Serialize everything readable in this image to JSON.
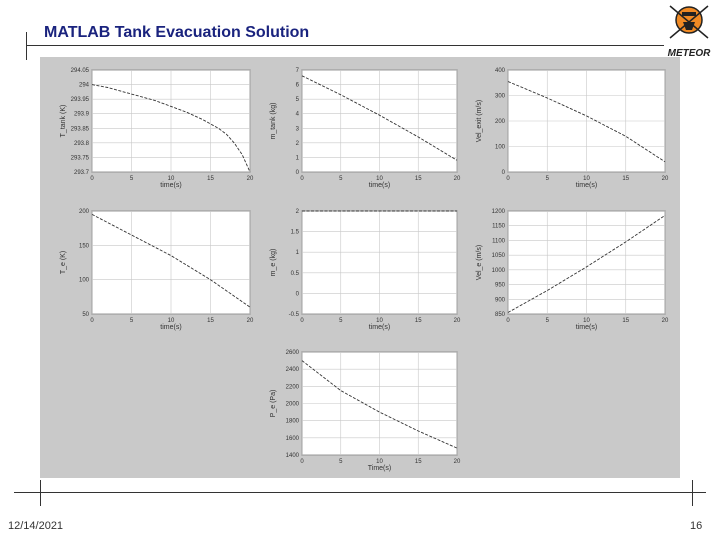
{
  "header": {
    "title": "MATLAB Tank Evacuation Solution",
    "logo_text": "METEOR"
  },
  "footer": {
    "date": "12/14/2021",
    "page": "16"
  },
  "colors": {
    "panel": "#c9c9c9",
    "title": "#1a237e",
    "grid": "#c8c8c8",
    "line": "#333333"
  },
  "chart_data": [
    {
      "type": "line",
      "xlabel": "time(s)",
      "ylabel": "T_tank (K)",
      "xticks": [
        0,
        5,
        10,
        15,
        20
      ],
      "xtick_labels": [
        "0",
        "5",
        "10",
        "15",
        "20"
      ],
      "xlim": [
        0,
        20
      ],
      "yticks": [
        293.7,
        293.75,
        293.8,
        293.85,
        293.9,
        293.95,
        294,
        294.05
      ],
      "ytick_labels": [
        "293.7",
        "293.75",
        "293.8",
        "293.85",
        "293.9",
        "293.95",
        "294",
        "294.05"
      ],
      "ylim": [
        293.7,
        294.05
      ],
      "x": [
        0,
        2,
        4,
        6,
        8,
        10,
        12,
        14,
        16,
        17,
        18,
        19,
        20
      ],
      "y": [
        294.0,
        293.99,
        293.975,
        293.96,
        293.945,
        293.925,
        293.905,
        293.88,
        293.85,
        293.83,
        293.8,
        293.76,
        293.7
      ]
    },
    {
      "type": "line",
      "xlabel": "time(s)",
      "ylabel": "m_tank (kg)",
      "xticks": [
        0,
        5,
        10,
        15,
        20
      ],
      "xtick_labels": [
        "0",
        "5",
        "10",
        "15",
        "20"
      ],
      "xlim": [
        0,
        20
      ],
      "yticks": [
        0,
        1,
        2,
        3,
        4,
        5,
        6,
        7
      ],
      "ytick_labels": [
        "0",
        "1",
        "2",
        "3",
        "4",
        "5",
        "6",
        "7"
      ],
      "ylim": [
        0,
        7
      ],
      "x": [
        0,
        5,
        10,
        15,
        20
      ],
      "y": [
        6.6,
        5.3,
        3.9,
        2.4,
        0.8
      ]
    },
    {
      "type": "line",
      "xlabel": "time(s)",
      "ylabel": "Vel_exit (m/s)",
      "xticks": [
        0,
        5,
        10,
        15,
        20
      ],
      "xtick_labels": [
        "0",
        "5",
        "10",
        "15",
        "20"
      ],
      "xlim": [
        0,
        20
      ],
      "yticks": [
        0,
        100,
        200,
        300,
        400
      ],
      "ytick_labels": [
        "0",
        "100",
        "200",
        "300",
        "400"
      ],
      "ylim": [
        0,
        400
      ],
      "x": [
        0,
        5,
        10,
        15,
        20
      ],
      "y": [
        355,
        290,
        220,
        140,
        40
      ]
    },
    {
      "type": "line",
      "xlabel": "time(s)",
      "ylabel": "T_e (K)",
      "xticks": [
        0,
        5,
        10,
        15,
        20
      ],
      "xtick_labels": [
        "0",
        "5",
        "10",
        "15",
        "20"
      ],
      "xlim": [
        0,
        20
      ],
      "yticks": [
        50,
        100,
        150,
        200
      ],
      "ytick_labels": [
        "50",
        "100",
        "150",
        "200"
      ],
      "ylim": [
        50,
        200
      ],
      "x": [
        0,
        5,
        10,
        15,
        20
      ],
      "y": [
        195,
        165,
        135,
        100,
        60
      ]
    },
    {
      "type": "line",
      "xlabel": "time(s)",
      "ylabel": "m_e (kg)",
      "xticks": [
        0,
        5,
        10,
        15,
        20
      ],
      "xtick_labels": [
        "0",
        "5",
        "10",
        "15",
        "20"
      ],
      "xlim": [
        0,
        20
      ],
      "yticks": [
        -0.5,
        0,
        0.5,
        1,
        1.5,
        2
      ],
      "ytick_labels": [
        "-0.5",
        "0",
        "0.5",
        "1",
        "1.5",
        "2"
      ],
      "ylim": [
        -0.5,
        2
      ],
      "x": [
        0,
        20
      ],
      "y": [
        2,
        2
      ]
    },
    {
      "type": "line",
      "xlabel": "time(s)",
      "ylabel": "Vel_e (m/s)",
      "xticks": [
        0,
        5,
        10,
        15,
        20
      ],
      "xtick_labels": [
        "0",
        "5",
        "10",
        "15",
        "20"
      ],
      "xlim": [
        0,
        20
      ],
      "yticks": [
        850,
        900,
        950,
        1000,
        1050,
        1100,
        1150,
        1200
      ],
      "ytick_labels": [
        "850",
        "900",
        "950",
        "1000",
        "1050",
        "1100",
        "1150",
        "1200"
      ],
      "ylim": [
        850,
        1200
      ],
      "x": [
        0,
        5,
        10,
        15,
        20
      ],
      "y": [
        855,
        930,
        1010,
        1095,
        1185
      ]
    },
    {
      "type": "line",
      "xlabel": "Time(s)",
      "ylabel": "P_e (Pa)",
      "xticks": [
        0,
        5,
        10,
        15,
        20
      ],
      "xtick_labels": [
        "0",
        "5",
        "10",
        "15",
        "20"
      ],
      "xlim": [
        0,
        20
      ],
      "yticks": [
        1400,
        1600,
        1800,
        2000,
        2200,
        2400,
        2600
      ],
      "ytick_labels": [
        "1400",
        "1600",
        "1800",
        "2000",
        "2200",
        "2400",
        "2600"
      ],
      "ylim": [
        1400,
        2600
      ],
      "x": [
        0,
        5,
        10,
        15,
        20
      ],
      "y": [
        2500,
        2150,
        1900,
        1680,
        1480
      ]
    }
  ]
}
